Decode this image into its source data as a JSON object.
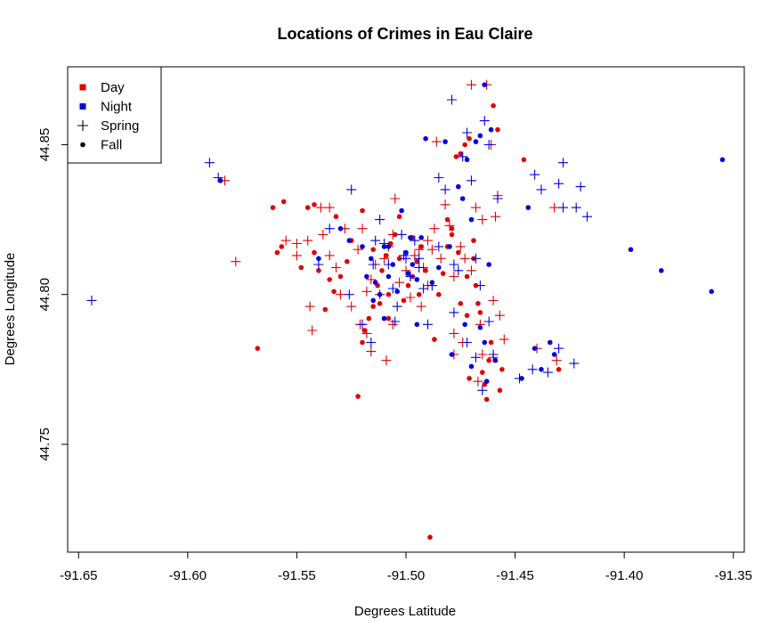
{
  "chart_data": {
    "type": "scatter",
    "title": "Locations of Crimes in Eau Claire",
    "xlabel": "Degrees Latitude",
    "ylabel": "Degrees Longitude",
    "xlim": [
      -91.655,
      -91.345
    ],
    "ylim": [
      44.714,
      44.876
    ],
    "xticks": [
      -91.65,
      -91.6,
      -91.55,
      -91.5,
      -91.45,
      -91.4,
      -91.35
    ],
    "xtick_labels": [
      "-91.65",
      "-91.60",
      "-91.55",
      "-91.50",
      "-91.45",
      "-91.40",
      "-91.35"
    ],
    "yticks": [
      44.75,
      44.8,
      44.85
    ],
    "ytick_labels": [
      "44.75",
      "44.80",
      "44.85"
    ],
    "grid": false,
    "legend": {
      "position": "top-left",
      "entries": [
        {
          "label": "Day",
          "symbol": "square",
          "color": "#e00000"
        },
        {
          "label": "Night",
          "symbol": "square",
          "color": "#0000e0"
        },
        {
          "label": "Spring",
          "symbol": "plus",
          "color": "#000000"
        },
        {
          "label": "Fall",
          "symbol": "dot",
          "color": "#000000"
        }
      ]
    },
    "colors": {
      "day": "#e00000",
      "night": "#0000e0"
    },
    "series": [
      {
        "name": "Day",
        "color": "#e00000",
        "spring": [
          [
            -91.583,
            44.838
          ],
          [
            -91.578,
            44.811
          ],
          [
            -91.555,
            44.818
          ],
          [
            -91.55,
            44.817
          ],
          [
            -91.545,
            44.818
          ],
          [
            -91.544,
            44.796
          ],
          [
            -91.543,
            44.788
          ],
          [
            -91.538,
            44.82
          ],
          [
            -91.535,
            44.829
          ],
          [
            -91.532,
            44.809
          ],
          [
            -91.528,
            44.822
          ],
          [
            -91.522,
            44.815
          ],
          [
            -91.52,
            44.822
          ],
          [
            -91.518,
            44.801
          ],
          [
            -91.516,
            44.805
          ],
          [
            -91.514,
            44.81
          ],
          [
            -91.512,
            44.8
          ],
          [
            -91.51,
            44.812
          ],
          [
            -91.508,
            44.816
          ],
          [
            -91.506,
            44.82
          ],
          [
            -91.505,
            44.832
          ],
          [
            -91.503,
            44.804
          ],
          [
            -91.5,
            44.808
          ],
          [
            -91.498,
            44.799
          ],
          [
            -91.496,
            44.813
          ],
          [
            -91.494,
            44.815
          ],
          [
            -91.492,
            44.809
          ],
          [
            -91.49,
            44.818
          ],
          [
            -91.488,
            44.815
          ],
          [
            -91.486,
            44.851
          ],
          [
            -91.482,
            44.83
          ],
          [
            -91.48,
            44.823
          ],
          [
            -91.478,
            44.806
          ],
          [
            -91.475,
            44.816
          ],
          [
            -91.473,
            44.812
          ],
          [
            -91.47,
            44.808
          ],
          [
            -91.468,
            44.829
          ],
          [
            -91.466,
            44.79
          ],
          [
            -91.465,
            44.825
          ],
          [
            -91.463,
            44.87
          ],
          [
            -91.461,
            44.85
          ],
          [
            -91.459,
            44.826
          ],
          [
            -91.457,
            44.793
          ],
          [
            -91.455,
            44.785
          ],
          [
            -91.47,
            44.87
          ],
          [
            -91.478,
            44.78
          ],
          [
            -91.467,
            44.771
          ],
          [
            -91.46,
            44.779
          ],
          [
            -91.458,
            44.833
          ],
          [
            -91.516,
            44.781
          ],
          [
            -91.509,
            44.778
          ],
          [
            -91.506,
            44.79
          ],
          [
            -91.521,
            44.79
          ],
          [
            -91.518,
            44.787
          ],
          [
            -91.525,
            44.796
          ],
          [
            -91.53,
            44.8
          ],
          [
            -91.535,
            44.813
          ],
          [
            -91.539,
            44.829
          ],
          [
            -91.55,
            44.813
          ],
          [
            -91.49,
            44.803
          ],
          [
            -91.478,
            44.787
          ],
          [
            -91.474,
            44.784
          ],
          [
            -91.465,
            44.78
          ],
          [
            -91.46,
            44.798
          ],
          [
            -91.431,
            44.778
          ],
          [
            -91.432,
            44.829
          ],
          [
            -91.44,
            44.782
          ],
          [
            -91.493,
            44.796
          ],
          [
            -91.487,
            44.822
          ],
          [
            -91.484,
            44.812
          ]
        ],
        "fall": [
          [
            -91.568,
            44.782
          ],
          [
            -91.561,
            44.829
          ],
          [
            -91.556,
            44.831
          ],
          [
            -91.557,
            44.816
          ],
          [
            -91.559,
            44.814
          ],
          [
            -91.545,
            44.829
          ],
          [
            -91.542,
            44.814
          ],
          [
            -91.54,
            44.808
          ],
          [
            -91.537,
            44.795
          ],
          [
            -91.533,
            44.801
          ],
          [
            -91.53,
            44.806
          ],
          [
            -91.527,
            44.811
          ],
          [
            -91.525,
            44.818
          ],
          [
            -91.522,
            44.766
          ],
          [
            -91.52,
            44.784
          ],
          [
            -91.519,
            44.788
          ],
          [
            -91.517,
            44.792
          ],
          [
            -91.515,
            44.796
          ],
          [
            -91.513,
            44.803
          ],
          [
            -91.511,
            44.808
          ],
          [
            -91.509,
            44.813
          ],
          [
            -91.507,
            44.817
          ],
          [
            -91.505,
            44.82
          ],
          [
            -91.503,
            44.826
          ],
          [
            -91.501,
            44.798
          ],
          [
            -91.499,
            44.803
          ],
          [
            -91.497,
            44.806
          ],
          [
            -91.495,
            44.811
          ],
          [
            -91.493,
            44.816
          ],
          [
            -91.491,
            44.808
          ],
          [
            -91.489,
            44.719
          ],
          [
            -91.487,
            44.785
          ],
          [
            -91.485,
            44.8
          ],
          [
            -91.483,
            44.807
          ],
          [
            -91.481,
            44.816
          ],
          [
            -91.479,
            44.822
          ],
          [
            -91.477,
            44.846
          ],
          [
            -91.475,
            44.847
          ],
          [
            -91.473,
            44.85
          ],
          [
            -91.471,
            44.852
          ],
          [
            -91.469,
            44.812
          ],
          [
            -91.467,
            44.797
          ],
          [
            -91.466,
            44.794
          ],
          [
            -91.465,
            44.774
          ],
          [
            -91.464,
            44.77
          ],
          [
            -91.463,
            44.765
          ],
          [
            -91.462,
            44.778
          ],
          [
            -91.461,
            44.784
          ],
          [
            -91.46,
            44.863
          ],
          [
            -91.458,
            44.855
          ],
          [
            -91.457,
            44.768
          ],
          [
            -91.456,
            44.775
          ],
          [
            -91.446,
            44.845
          ],
          [
            -91.43,
            44.775
          ],
          [
            -91.471,
            44.772
          ],
          [
            -91.475,
            44.797
          ],
          [
            -91.468,
            44.803
          ],
          [
            -91.472,
            44.793
          ],
          [
            -91.503,
            44.812
          ],
          [
            -91.497,
            44.819
          ],
          [
            -91.508,
            44.8
          ],
          [
            -91.512,
            44.797
          ],
          [
            -91.515,
            44.815
          ],
          [
            -91.52,
            44.828
          ],
          [
            -91.532,
            44.826
          ],
          [
            -91.542,
            44.83
          ],
          [
            -91.548,
            44.809
          ],
          [
            -91.535,
            44.805
          ],
          [
            -91.508,
            44.792
          ],
          [
            -91.479,
            44.82
          ],
          [
            -91.481,
            44.825
          ],
          [
            -91.476,
            44.814
          ],
          [
            -91.472,
            44.806
          ],
          [
            -91.469,
            44.818
          ],
          [
            -91.494,
            44.8
          ]
        ]
      },
      {
        "name": "Night",
        "color": "#0000e0",
        "spring": [
          [
            -91.644,
            44.798
          ],
          [
            -91.59,
            44.844
          ],
          [
            -91.586,
            44.839
          ],
          [
            -91.525,
            44.835
          ],
          [
            -91.535,
            44.822
          ],
          [
            -91.54,
            44.81
          ],
          [
            -91.526,
            44.8
          ],
          [
            -91.52,
            44.79
          ],
          [
            -91.516,
            44.784
          ],
          [
            -91.514,
            44.818
          ],
          [
            -91.512,
            44.825
          ],
          [
            -91.51,
            44.817
          ],
          [
            -91.508,
            44.81
          ],
          [
            -91.506,
            44.802
          ],
          [
            -91.504,
            44.796
          ],
          [
            -91.502,
            44.82
          ],
          [
            -91.5,
            44.812
          ],
          [
            -91.498,
            44.806
          ],
          [
            -91.496,
            44.818
          ],
          [
            -91.494,
            44.809
          ],
          [
            -91.492,
            44.802
          ],
          [
            -91.49,
            44.79
          ],
          [
            -91.485,
            44.839
          ],
          [
            -91.482,
            44.835
          ],
          [
            -91.479,
            44.865
          ],
          [
            -91.476,
            44.808
          ],
          [
            -91.474,
            44.846
          ],
          [
            -91.472,
            44.854
          ],
          [
            -91.47,
            44.838
          ],
          [
            -91.468,
            44.812
          ],
          [
            -91.466,
            44.803
          ],
          [
            -91.464,
            44.858
          ],
          [
            -91.462,
            44.85
          ],
          [
            -91.46,
            44.78
          ],
          [
            -91.458,
            44.832
          ],
          [
            -91.478,
            44.794
          ],
          [
            -91.472,
            44.784
          ],
          [
            -91.468,
            44.779
          ],
          [
            -91.465,
            44.768
          ],
          [
            -91.462,
            44.791
          ],
          [
            -91.448,
            44.772
          ],
          [
            -91.442,
            44.775
          ],
          [
            -91.441,
            44.84
          ],
          [
            -91.438,
            44.835
          ],
          [
            -91.43,
            44.837
          ],
          [
            -91.428,
            44.844
          ],
          [
            -91.428,
            44.829
          ],
          [
            -91.422,
            44.829
          ],
          [
            -91.42,
            44.836
          ],
          [
            -91.417,
            44.826
          ],
          [
            -91.423,
            44.777
          ],
          [
            -91.435,
            44.774
          ],
          [
            -91.43,
            44.782
          ],
          [
            -91.494,
            44.812
          ],
          [
            -91.501,
            44.813
          ],
          [
            -91.505,
            44.791
          ],
          [
            -91.515,
            44.81
          ],
          [
            -91.478,
            44.81
          ],
          [
            -91.485,
            44.816
          ],
          [
            -91.488,
            44.803
          ]
        ],
        "fall": [
          [
            -91.585,
            44.838
          ],
          [
            -91.54,
            44.812
          ],
          [
            -91.53,
            44.822
          ],
          [
            -91.526,
            44.818
          ],
          [
            -91.52,
            44.816
          ],
          [
            -91.518,
            44.806
          ],
          [
            -91.516,
            44.812
          ],
          [
            -91.514,
            44.804
          ],
          [
            -91.512,
            44.8
          ],
          [
            -91.51,
            44.816
          ],
          [
            -91.508,
            44.806
          ],
          [
            -91.506,
            44.81
          ],
          [
            -91.504,
            44.801
          ],
          [
            -91.502,
            44.828
          ],
          [
            -91.5,
            44.814
          ],
          [
            -91.498,
            44.819
          ],
          [
            -91.497,
            44.81
          ],
          [
            -91.495,
            44.805
          ],
          [
            -91.493,
            44.819
          ],
          [
            -91.491,
            44.852
          ],
          [
            -91.488,
            44.804
          ],
          [
            -91.485,
            44.809
          ],
          [
            -91.482,
            44.851
          ],
          [
            -91.479,
            44.78
          ],
          [
            -91.476,
            44.836
          ],
          [
            -91.474,
            44.832
          ],
          [
            -91.472,
            44.845
          ],
          [
            -91.47,
            44.825
          ],
          [
            -91.468,
            44.851
          ],
          [
            -91.466,
            44.853
          ],
          [
            -91.464,
            44.87
          ],
          [
            -91.463,
            44.771
          ],
          [
            -91.462,
            44.81
          ],
          [
            -91.461,
            44.855
          ],
          [
            -91.459,
            44.778
          ],
          [
            -91.447,
            44.772
          ],
          [
            -91.444,
            44.829
          ],
          [
            -91.441,
            44.782
          ],
          [
            -91.438,
            44.775
          ],
          [
            -91.434,
            44.784
          ],
          [
            -91.432,
            44.78
          ],
          [
            -91.397,
            44.815
          ],
          [
            -91.383,
            44.808
          ],
          [
            -91.36,
            44.801
          ],
          [
            -91.355,
            44.845
          ],
          [
            -91.48,
            44.816
          ],
          [
            -91.515,
            44.798
          ],
          [
            -91.508,
            44.816
          ],
          [
            -91.499,
            44.807
          ],
          [
            -91.473,
            44.79
          ],
          [
            -91.466,
            44.789
          ],
          [
            -91.464,
            44.784
          ],
          [
            -91.47,
            44.776
          ],
          [
            -91.51,
            44.792
          ],
          [
            -91.495,
            44.79
          ]
        ]
      }
    ]
  }
}
